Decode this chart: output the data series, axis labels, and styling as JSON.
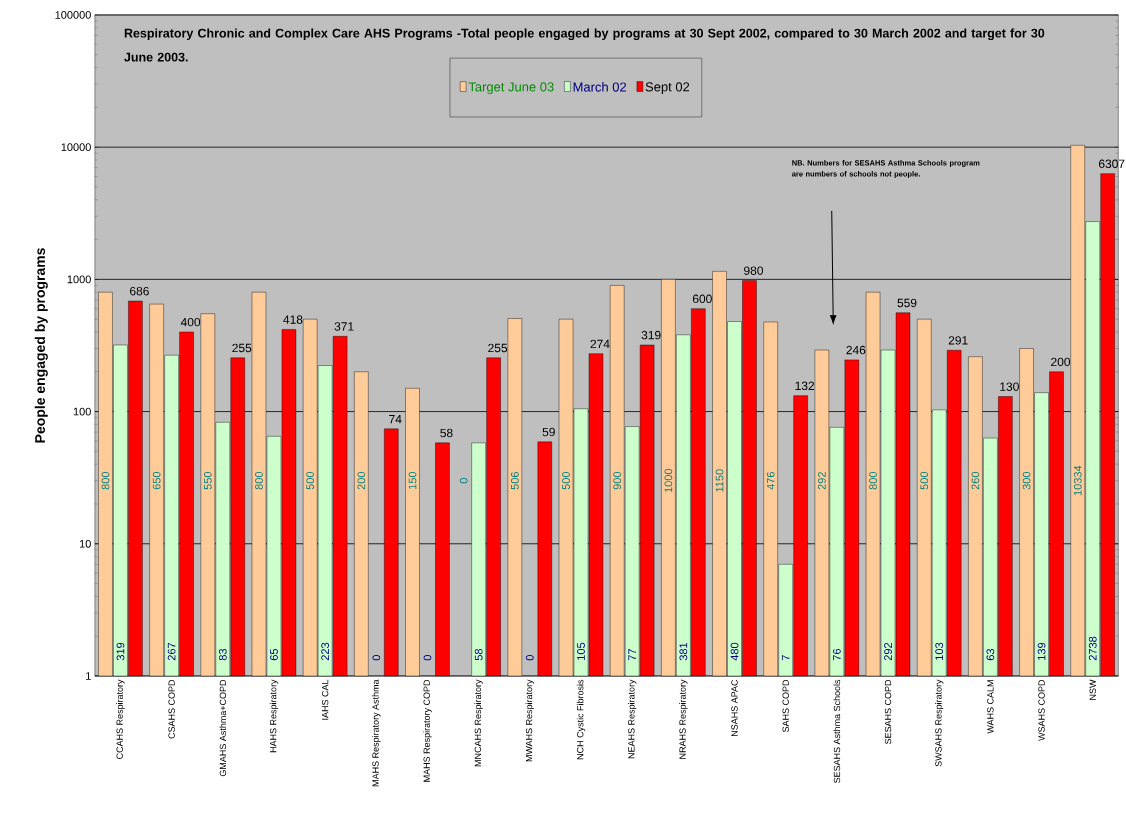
{
  "chart_data": {
    "type": "bar",
    "title": "Respiratory Chronic and Complex Care AHS Programs -Total people engaged by programs at 30 Sept 2002, compared to 30 March 2002 and target for 30 June 2003.",
    "ylabel": "People engaged by programs",
    "categories": [
      "CCAHS Respiratory",
      "CSAHS COPD",
      "GMAHS Asthma+COPD",
      "HAHS Respiratory",
      "IAHS CAL",
      "MAHS Respiratory Asthma",
      "MAHS Respiratory COPD",
      "MNCAHS Respiratory",
      "MWAHS Respiratory",
      "NCH Cystic Fibrosis",
      "NEAHS Respiratory",
      "NRAHS Respiratory",
      "NSAHS APAC",
      "SAHS COPD",
      "SESAHS Asthma Schools",
      "SESAHS COPD",
      "SWSAHS Respiratory",
      "WAHS CALM",
      "WSAHS COPD",
      "NSW"
    ],
    "series": [
      {
        "name": "Target June 03",
        "color": "#ffcc99",
        "values": [
          800,
          650,
          550,
          800,
          500,
          200,
          150,
          null,
          506,
          500,
          900,
          1000,
          1150,
          476,
          292,
          800,
          500,
          260,
          300,
          10334
        ],
        "value_labels": [
          "800",
          "650",
          "550",
          "800",
          "500",
          "200",
          "150",
          "0",
          "506",
          "500",
          "900",
          "1000",
          "1150",
          "476",
          "292",
          "800",
          "500",
          "260",
          "300",
          "10334"
        ]
      },
      {
        "name": "March 02",
        "color": "#ccffcc",
        "values": [
          319,
          267,
          83,
          65,
          223,
          null,
          null,
          58,
          null,
          105,
          77,
          381,
          480,
          7,
          76,
          292,
          103,
          63,
          139,
          2738
        ],
        "value_labels": [
          "319",
          "267",
          "83",
          "65",
          "223",
          "0",
          "0",
          "58",
          "0",
          "105",
          "77",
          "381",
          "480",
          "7",
          "76",
          "292",
          "103",
          "63",
          "139",
          "2738"
        ]
      },
      {
        "name": "Sept 02",
        "color": "#ff0000",
        "values": [
          686,
          400,
          255,
          418,
          371,
          74,
          58,
          255,
          59,
          274,
          319,
          600,
          980,
          132,
          246,
          559,
          291,
          130,
          200,
          6307
        ],
        "value_labels": [
          "686",
          "400",
          "255",
          "418",
          "371",
          "74",
          "58",
          "255",
          "59",
          "274",
          "319",
          "600",
          "980",
          "132",
          "246",
          "559",
          "291",
          "130",
          "200",
          "6307"
        ]
      }
    ],
    "ylim": [
      1,
      100000
    ],
    "yticks": [
      1,
      10,
      100,
      1000,
      10000,
      100000
    ],
    "log": true,
    "grid": "y",
    "legend": "top",
    "annotations": [
      "NB. Numbers for SESAHS Asthma Schools program are numbers of schools not people."
    ]
  }
}
